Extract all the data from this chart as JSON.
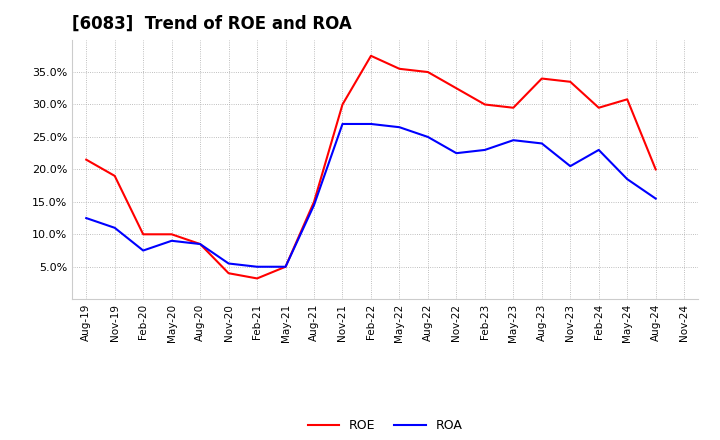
{
  "title": "[6083]  Trend of ROE and ROA",
  "x_labels": [
    "Aug-19",
    "Nov-19",
    "Feb-20",
    "May-20",
    "Aug-20",
    "Nov-20",
    "Feb-21",
    "May-21",
    "Aug-21",
    "Nov-21",
    "Feb-22",
    "May-22",
    "Aug-22",
    "Nov-22",
    "Feb-23",
    "May-23",
    "Aug-23",
    "Nov-23",
    "Feb-24",
    "May-24",
    "Aug-24",
    "Nov-24"
  ],
  "roe": [
    21.5,
    19.0,
    10.0,
    10.0,
    8.5,
    4.0,
    3.2,
    5.0,
    15.0,
    30.0,
    37.5,
    35.5,
    35.0,
    32.5,
    30.0,
    29.5,
    34.0,
    33.5,
    29.5,
    30.8,
    20.0,
    null
  ],
  "roa": [
    12.5,
    11.0,
    7.5,
    9.0,
    8.5,
    5.5,
    5.0,
    5.0,
    14.5,
    27.0,
    27.0,
    26.5,
    25.0,
    22.5,
    23.0,
    24.5,
    24.0,
    20.5,
    23.0,
    18.5,
    15.5,
    null
  ],
  "roe_color": "#FF0000",
  "roa_color": "#0000FF",
  "background_color": "#FFFFFF",
  "grid_color": "#AAAAAA",
  "ylim": [
    0,
    40
  ],
  "yticks": [
    5.0,
    10.0,
    15.0,
    20.0,
    25.0,
    30.0,
    35.0
  ],
  "title_fontsize": 12,
  "legend_labels": [
    "ROE",
    "ROA"
  ],
  "line_width": 1.5
}
